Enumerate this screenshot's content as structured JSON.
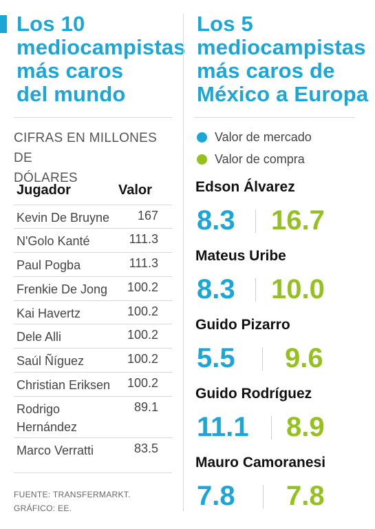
{
  "colors": {
    "blue": "#1aa7d8",
    "green": "#95c11f",
    "divider": "#d9d9d9"
  },
  "left": {
    "title": [
      "Los 10",
      "mediocampistas",
      "más caros",
      "del mundo"
    ],
    "units": [
      "CIFRAS EN MILLONES DE",
      "DÓLARES"
    ],
    "table": {
      "headers": {
        "player": "Jugador",
        "value": "Valor"
      },
      "rows": [
        {
          "player": "Kevin De Bruyne",
          "value": "167"
        },
        {
          "player": "N'Golo Kanté",
          "value": "111.3"
        },
        {
          "player": "Paul Pogba",
          "value": "111.3"
        },
        {
          "player": "Frenkie De Jong",
          "value": "100.2"
        },
        {
          "player": "Kai Havertz",
          "value": "100.2"
        },
        {
          "player": "Dele Alli",
          "value": "100.2"
        },
        {
          "player": "Saúl Ñíguez",
          "value": "100.2"
        },
        {
          "player": "Christian Eriksen",
          "value": "100.2"
        },
        {
          "player": "Rodrigo Hernández",
          "value": "89.1"
        },
        {
          "player": "Marco Verratti",
          "value": "83.5"
        }
      ]
    },
    "source": [
      "FUENTE: TRANSFERMARKT.",
      "GRÁFICO: EE."
    ]
  },
  "right": {
    "title": [
      "Los 5",
      "mediocampistas",
      "más caros de",
      "México a Europa"
    ],
    "legend": {
      "market_value": "Valor de mercado",
      "purchase_value": "Valor de compra"
    },
    "players": [
      {
        "name": "Edson Álvarez",
        "market_value": "8.3",
        "purchase_value": "16.7"
      },
      {
        "name": "Mateus Uribe",
        "market_value": "8.3",
        "purchase_value": "10.0"
      },
      {
        "name": "Guido Pizarro",
        "market_value": "5.5",
        "purchase_value": "9.6"
      },
      {
        "name": "Guido Rodríguez",
        "market_value": "11.1",
        "purchase_value": "8.9"
      },
      {
        "name": "Mauro Camoranesi",
        "market_value": "7.8",
        "purchase_value": "7.8"
      }
    ]
  }
}
